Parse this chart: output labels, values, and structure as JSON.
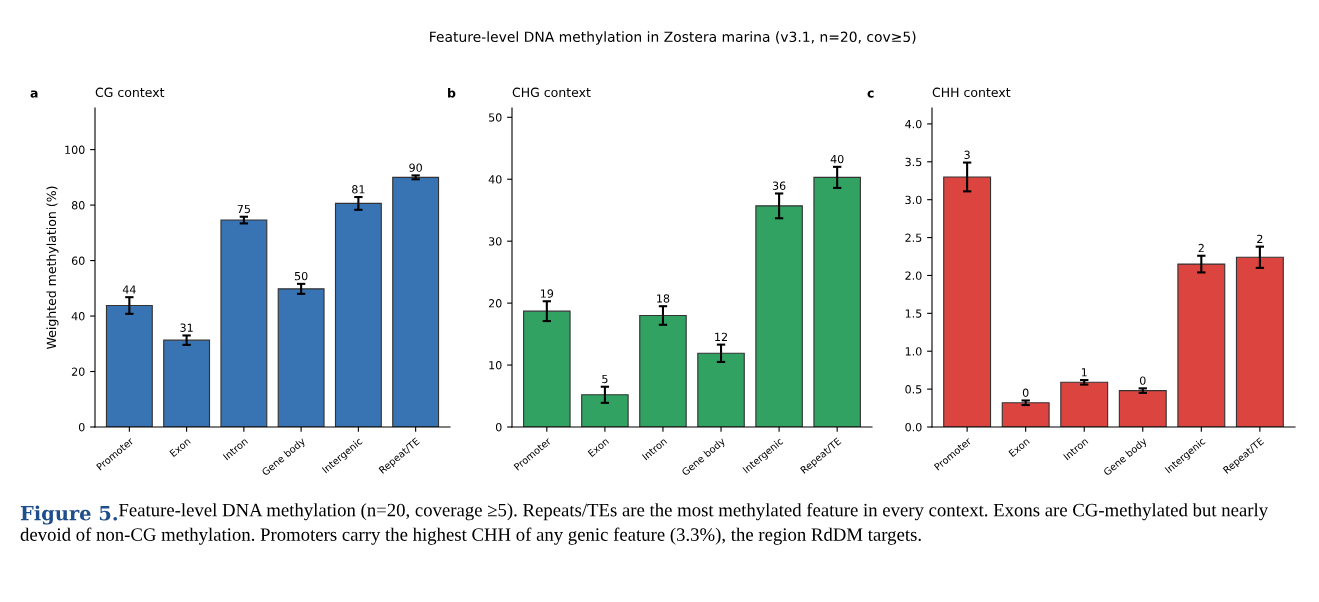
{
  "chart_data": [
    {
      "type": "bar",
      "title": "CG context",
      "ylabel": "Weighted methylation (%)",
      "annotations": [
        "a",
        "Feature-level DNA methylation in Zostera marina (v3.1, n=20, cov≥5)",
        "Figure 5.",
        "Feature-level DNA methylation (n=20, coverage ≥5). Repeats/TEs are the most methylated feature in every context. Exons are CG-methylated but nearly devoid of non-CG methylation. Promoters carry the highest CHH of any genic feature (3.3%), the region RdDM targets."
      ],
      "categories": [
        "Promoter",
        "Exon",
        "Intron",
        "Gene body",
        "Intergenic",
        "Repeat/TE"
      ],
      "values": [
        43.8,
        31.3,
        74.6,
        49.8,
        80.6,
        90.0
      ],
      "errors": [
        3.0,
        1.7,
        1.2,
        1.8,
        2.3,
        0.7
      ],
      "value_labels": [
        "44",
        "31",
        "75",
        "50",
        "81",
        "90"
      ],
      "color": "#3873b3",
      "ylim": [
        0,
        115
      ],
      "yticks": [
        0,
        20,
        40,
        60,
        80,
        100
      ],
      "grid": false,
      "legend": false
    },
    {
      "type": "bar",
      "title": "CHG context",
      "annotations": [
        "b"
      ],
      "categories": [
        "Promoter",
        "Exon",
        "Intron",
        "Gene body",
        "Intergenic",
        "Repeat/TE"
      ],
      "values": [
        18.7,
        5.2,
        18.0,
        11.9,
        35.7,
        40.3
      ],
      "errors": [
        1.6,
        1.3,
        1.5,
        1.4,
        2.0,
        1.7
      ],
      "value_labels": [
        "19",
        "5",
        "18",
        "12",
        "36",
        "40"
      ],
      "color": "#31a262",
      "ylim": [
        0,
        51.5
      ],
      "yticks": [
        0,
        10,
        20,
        30,
        40,
        50
      ],
      "grid": false,
      "legend": false
    },
    {
      "type": "bar",
      "title": "CHH context",
      "annotations": [
        "c"
      ],
      "categories": [
        "Promoter",
        "Exon",
        "Intron",
        "Gene body",
        "Intergenic",
        "Repeat/TE"
      ],
      "values": [
        3.3,
        0.32,
        0.59,
        0.48,
        2.15,
        2.24
      ],
      "errors": [
        0.19,
        0.03,
        0.03,
        0.03,
        0.11,
        0.14
      ],
      "value_labels": [
        "3",
        "0",
        "1",
        "0",
        "2",
        "2"
      ],
      "color": "#dc4440",
      "ylim": [
        0,
        4.21
      ],
      "yticks": [
        {
          "value": 0,
          "label": "0.0"
        },
        0.5,
        {
          "value": 1,
          "label": "1.0"
        },
        1.5,
        {
          "value": 2,
          "label": "2.0"
        },
        2.5,
        {
          "value": 3,
          "label": "3.0"
        },
        3.5,
        {
          "value": 4,
          "label": "4.0"
        }
      ],
      "grid": false,
      "legend": false
    }
  ]
}
